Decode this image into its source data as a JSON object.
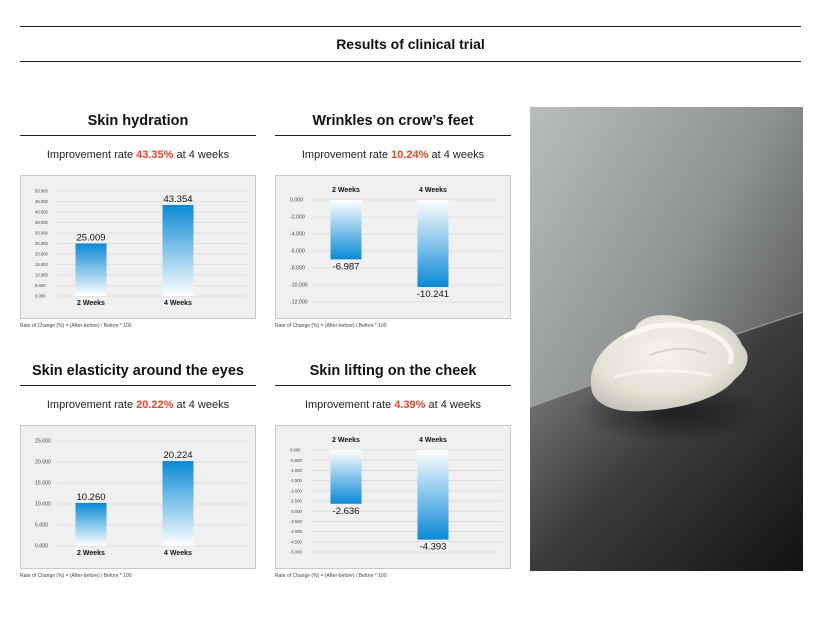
{
  "page": {
    "title": "Results of clinical trial",
    "improvement_prefix": "Improvement rate",
    "improvement_suffix": "at 4 weeks",
    "formula": "Rate of Change (%) = (After-before) / Before * 100"
  },
  "chart_data": [
    {
      "type": "bar",
      "title": "Skin hydration",
      "improvement_rate": "43.35%",
      "categories": [
        "2 Weeks",
        "4 Weeks"
      ],
      "values": [
        25.009,
        43.354
      ],
      "value_labels": [
        "25.009",
        "43.354"
      ],
      "ylim": [
        0,
        50
      ],
      "yticks": [
        "50.000",
        "45.000",
        "40.000",
        "35.000",
        "30.000",
        "25.000",
        "20.000",
        "15.000",
        "10.000",
        "5.000",
        "0.000"
      ],
      "ytick_values": [
        50,
        45,
        40,
        35,
        30,
        25,
        20,
        15,
        10,
        5,
        0
      ],
      "category_labels_position": "bottom",
      "grid": true,
      "xlabel": "",
      "ylabel": ""
    },
    {
      "type": "bar",
      "title": "Wrinkles on crow’s feet",
      "improvement_rate": "10.24%",
      "categories": [
        "2 Weeks",
        "4 Weeks"
      ],
      "values": [
        -6.987,
        -10.241
      ],
      "value_labels": [
        "-6.987",
        "-10.241"
      ],
      "ylim": [
        -12,
        0
      ],
      "yticks": [
        "0.000",
        "-2.000",
        "-4.000",
        "-6.000",
        "-8.000",
        "-10.000",
        "-12.000"
      ],
      "ytick_values": [
        0,
        -2,
        -4,
        -6,
        -8,
        -10,
        -12
      ],
      "category_labels_position": "top",
      "grid": true,
      "xlabel": "",
      "ylabel": ""
    },
    {
      "type": "bar",
      "title": "Skin elasticity around the eyes",
      "improvement_rate": "20.22%",
      "categories": [
        "2 Weeks",
        "4 Weeks"
      ],
      "values": [
        10.26,
        20.224
      ],
      "value_labels": [
        "10.260",
        "20.224"
      ],
      "ylim": [
        0,
        25
      ],
      "yticks": [
        "25.000",
        "20.000",
        "15.000",
        "10.000",
        "5.000",
        "0.000"
      ],
      "ytick_values": [
        25,
        20,
        15,
        10,
        5,
        0
      ],
      "category_labels_position": "bottom",
      "grid": true,
      "xlabel": "",
      "ylabel": ""
    },
    {
      "type": "bar",
      "title": "Skin lifting on the cheek",
      "improvement_rate": "4.39%",
      "categories": [
        "2 Weeks",
        "4 Weeks"
      ],
      "values": [
        -2.636,
        -4.393
      ],
      "value_labels": [
        "-2.636",
        "-4.393"
      ],
      "ylim": [
        -5,
        0
      ],
      "yticks": [
        "0.000",
        "-0.500",
        "-1.000",
        "-1.500",
        "-2.000",
        "-2.500",
        "-3.000",
        "-3.500",
        "-4.000",
        "-4.500",
        "-5.000"
      ],
      "ytick_values": [
        0,
        -0.5,
        -1,
        -1.5,
        -2,
        -2.5,
        -3,
        -3.5,
        -4,
        -4.5,
        -5
      ],
      "category_labels_position": "top",
      "grid": true,
      "xlabel": "",
      "ylabel": ""
    }
  ],
  "colors": {
    "accent_rate": "#e8452c",
    "bar_strong": "#0a8ad6",
    "bar_light": "#ffffff",
    "chart_bg": "#f0f0f0"
  }
}
